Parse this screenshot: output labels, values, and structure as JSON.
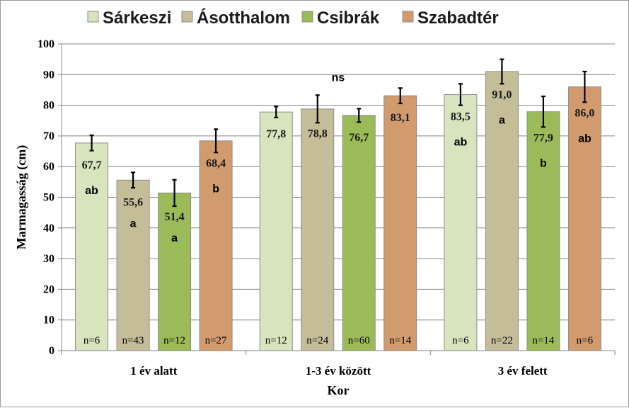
{
  "chart_data": {
    "type": "bar",
    "ylabel": "Marmagasság (cm)",
    "xlabel": "Kor",
    "ylim": [
      0,
      100
    ],
    "yticks": [
      "0",
      "10",
      "20",
      "30",
      "40",
      "50",
      "60",
      "70",
      "80",
      "90",
      "100"
    ],
    "grid": true,
    "legend_position": "top",
    "categories": [
      "1 év alatt",
      "1-3 év között",
      "3 év felett"
    ],
    "group_annotations": [
      "",
      "ns",
      ""
    ],
    "series": [
      {
        "name": "Sárkeszi",
        "color": "#d7e4bd",
        "values": [
          67.7,
          77.8,
          83.5
        ],
        "errors": [
          2.5,
          1.8,
          3.5
        ],
        "value_labels": [
          "67,7",
          "77,8",
          "83,5"
        ],
        "letters": [
          "ab",
          "",
          "ab"
        ],
        "n_labels": [
          "n=6",
          "n=12",
          "n=6"
        ]
      },
      {
        "name": "Ásotthalom",
        "color": "#c4bd97",
        "values": [
          55.6,
          78.8,
          91.0
        ],
        "errors": [
          2.5,
          4.5,
          4.0
        ],
        "value_labels": [
          "55,6",
          "78,8",
          "91,0"
        ],
        "letters": [
          "a",
          "",
          "a"
        ],
        "n_labels": [
          "n=43",
          "n=24",
          "n=22"
        ]
      },
      {
        "name": "Csibrák",
        "color": "#9bbb59",
        "values": [
          51.4,
          76.7,
          77.9
        ],
        "errors": [
          4.3,
          2.2,
          5.0
        ],
        "value_labels": [
          "51,4",
          "76,7",
          "77,9"
        ],
        "letters": [
          "a",
          "",
          "b"
        ],
        "n_labels": [
          "n=12",
          "n=60",
          "n=14"
        ]
      },
      {
        "name": "Szabadtér",
        "color": "#d19b6e",
        "values": [
          68.4,
          83.1,
          86.0
        ],
        "errors": [
          3.8,
          2.5,
          5.0
        ],
        "value_labels": [
          "68,4",
          "83,1",
          "86,0"
        ],
        "letters": [
          "b",
          "",
          "ab"
        ],
        "n_labels": [
          "n=27",
          "n=14",
          "n=6"
        ]
      }
    ]
  }
}
